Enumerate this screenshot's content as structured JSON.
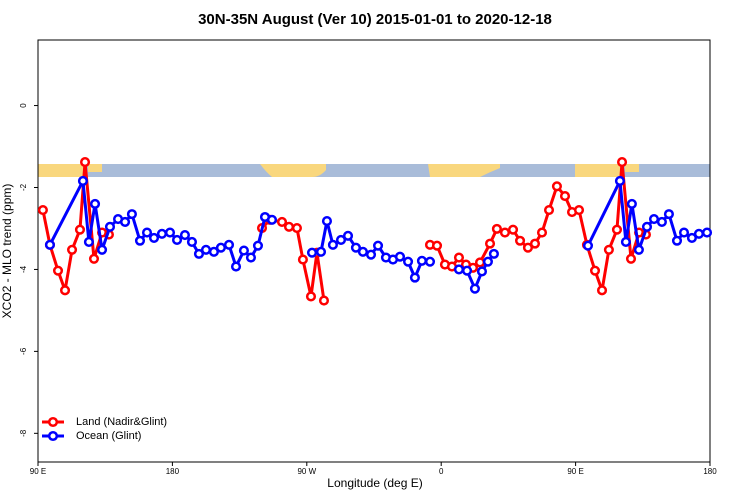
{
  "chart_data": {
    "type": "line",
    "title": "30N-35N August (Ver 10)   2015-01-01 to 2020-12-18",
    "x_label": "Longitude (deg E)",
    "y_label": "XCO2 - MLO trend (ppm)",
    "xlim": [
      90,
      540
    ],
    "ylim": [
      -8.7,
      1.6
    ],
    "xticks": [
      {
        "value": 90,
        "label": "90 E"
      },
      180,
      {
        "value": 270,
        "label": "90 W"
      },
      {
        "value": 360,
        "label": "0"
      },
      {
        "value": 450,
        "label": "90 E"
      },
      {
        "value": 540,
        "label": "180"
      }
    ],
    "yticks": [
      0,
      -2,
      -4,
      -6,
      -8
    ],
    "legend": "bottomleft",
    "series": [
      {
        "name": "Land (Nadir&Glint)",
        "color": "#ff0000",
        "x": [
          93.3,
          98.0,
          103.4,
          108.1,
          112.8,
          118.1,
          121.5,
          127.5,
          132.9,
          137.5,
          null,
          240.0,
          245.3,
          253.4,
          258.1,
          263.4,
          267.4,
          272.8,
          276.8,
          281.5,
          null,
          352.5,
          357.2,
          362.5,
          367.2,
          371.9,
          376.6,
          381.3,
          386.0,
          392.7,
          397.3,
          402.7,
          408.1,
          412.8,
          418.1,
          422.8,
          427.5,
          432.2,
          437.5,
          442.9,
          447.6,
          452.3,
          457.6,
          463.0,
          467.7,
          472.3,
          477.7,
          481.1,
          487.1,
          492.5,
          497.1
        ],
        "values": [
          -2.55,
          -3.4,
          -4.03,
          -4.51,
          -3.52,
          -3.03,
          -1.38,
          -3.74,
          -3.1,
          -3.15,
          null,
          -2.99,
          -2.79,
          -2.84,
          -2.96,
          -2.99,
          -3.76,
          -4.66,
          -3.59,
          -4.76,
          null,
          -3.4,
          -3.42,
          -3.88,
          -3.93,
          -3.71,
          -3.88,
          -3.96,
          -3.83,
          -3.37,
          -3.01,
          -3.1,
          -3.03,
          -3.3,
          -3.47,
          -3.37,
          -3.1,
          -2.55,
          -1.97,
          -2.21,
          -2.6,
          -2.55,
          -3.4,
          -4.03,
          -4.51,
          -3.52,
          -3.03,
          -1.38,
          -3.74,
          -3.1,
          -3.15
        ]
      },
      {
        "name": "Ocean (Glint)",
        "color": "#0000ff",
        "x": [
          98.0,
          120.1,
          124.1,
          128.2,
          132.9,
          138.2,
          143.6,
          148.3,
          152.9,
          158.3,
          163.0,
          167.7,
          173.0,
          178.4,
          183.1,
          188.4,
          193.1,
          197.8,
          202.5,
          207.8,
          212.5,
          217.9,
          222.6,
          227.9,
          232.6,
          237.3,
          242.0,
          246.7,
          null,
          273.5,
          279.5,
          283.5,
          287.5,
          292.9,
          297.6,
          302.9,
          307.6,
          313.0,
          317.7,
          323.0,
          327.7,
          332.4,
          337.8,
          342.4,
          347.1,
          352.5,
          null,
          371.9,
          377.3,
          382.6,
          387.3,
          391.3,
          395.3,
          null,
          458.3,
          479.7,
          483.7,
          487.7,
          492.4,
          497.8,
          502.5,
          507.8,
          512.5,
          517.9,
          522.6,
          527.9,
          532.6,
          538.0
        ],
        "values": [
          -3.4,
          -1.84,
          -3.33,
          -2.4,
          -3.52,
          -2.96,
          -2.77,
          -2.84,
          -2.65,
          -3.3,
          -3.1,
          -3.23,
          -3.13,
          -3.1,
          -3.28,
          -3.16,
          -3.33,
          -3.62,
          -3.52,
          -3.57,
          -3.47,
          -3.4,
          -3.93,
          -3.54,
          -3.71,
          -3.42,
          -2.72,
          -2.79,
          null,
          -3.59,
          -3.57,
          -2.82,
          -3.4,
          -3.28,
          -3.18,
          -3.47,
          -3.57,
          -3.64,
          -3.42,
          -3.71,
          -3.76,
          -3.69,
          -3.81,
          -4.2,
          -3.79,
          -3.81,
          null,
          -4.0,
          -4.03,
          -4.47,
          -4.05,
          -3.81,
          -3.62,
          null,
          -3.42,
          -1.84,
          -3.33,
          -2.4,
          -3.52,
          -2.96,
          -2.77,
          -2.84,
          -2.65,
          -3.3,
          -3.1,
          -3.23,
          -3.13,
          -3.1
        ]
      }
    ]
  }
}
